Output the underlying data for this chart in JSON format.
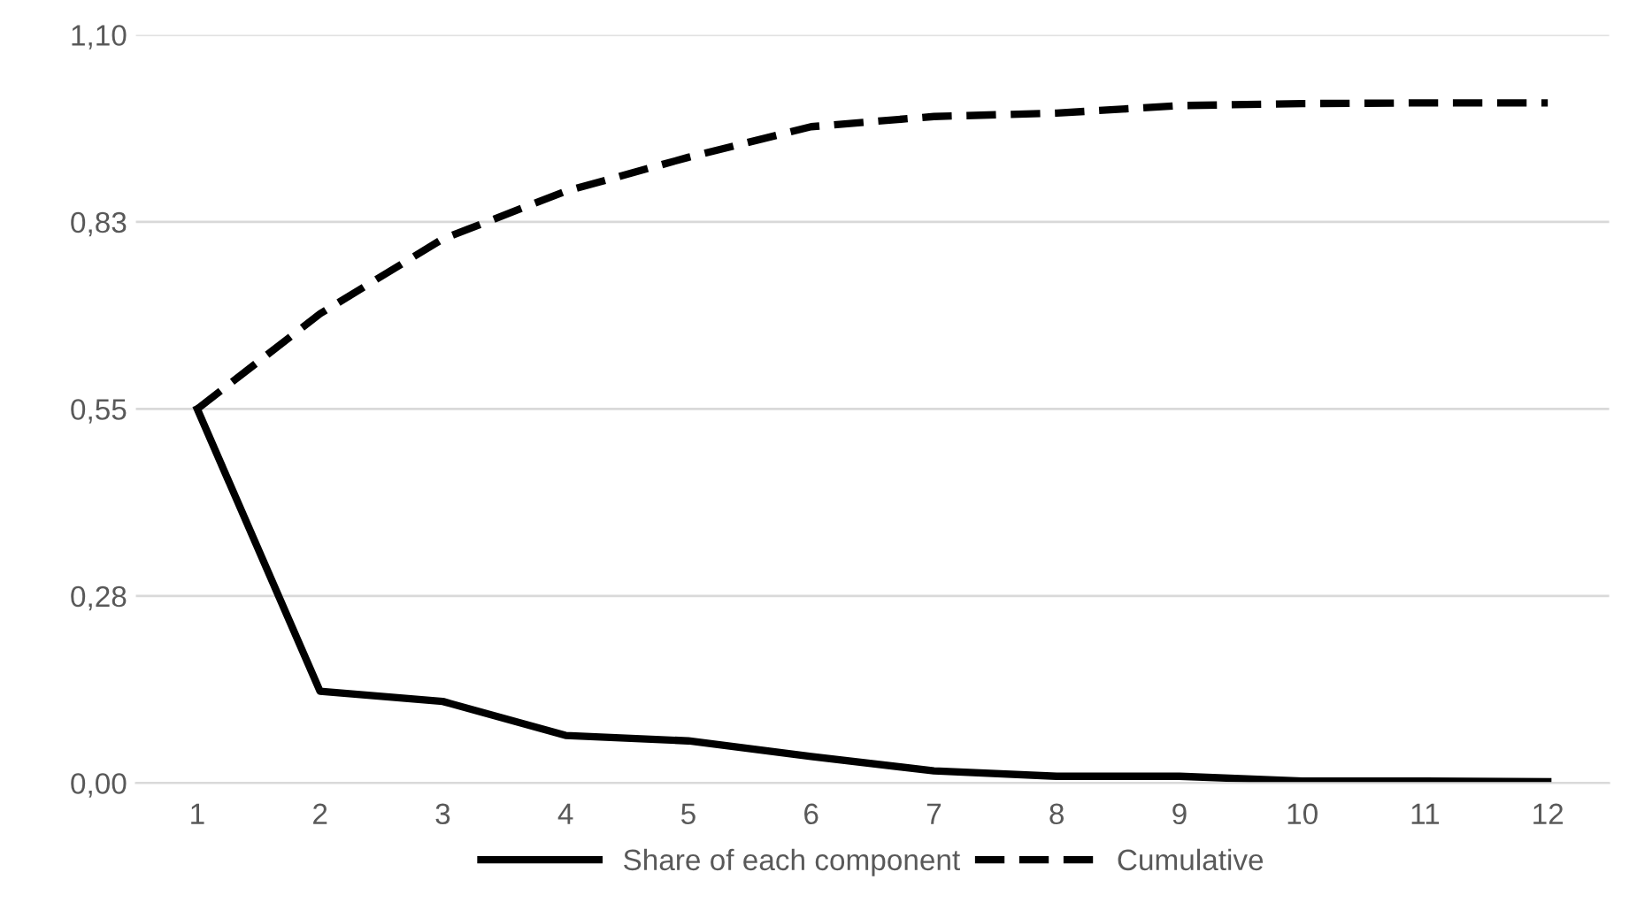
{
  "chart_data": {
    "type": "line",
    "categories": [
      "1",
      "2",
      "3",
      "4",
      "5",
      "6",
      "7",
      "8",
      "9",
      "10",
      "11",
      "12"
    ],
    "series": [
      {
        "name": "Share of each component",
        "color": "#000000",
        "line_style": "solid",
        "values": [
          0.55,
          0.135,
          0.12,
          0.07,
          0.062,
          0.039,
          0.018,
          0.01,
          0.01,
          0.003,
          0.003,
          0.002
        ]
      },
      {
        "name": "Cumulative",
        "color": "#000000",
        "line_style": "dashed",
        "values": [
          0.55,
          0.69,
          0.8,
          0.87,
          0.92,
          0.965,
          0.98,
          0.985,
          0.996,
          0.999,
          1.0,
          1.0
        ]
      }
    ],
    "ylim": [
      0,
      1.1
    ],
    "yticks": [
      {
        "value": 0,
        "label": "0,00"
      },
      {
        "value": 0.275,
        "label": "0,28"
      },
      {
        "value": 0.55,
        "label": "0,55"
      },
      {
        "value": 0.825,
        "label": "0,83"
      },
      {
        "value": 1.1,
        "label": "1,10"
      }
    ],
    "grid": "y",
    "legend": "bottom",
    "marker": "none"
  }
}
